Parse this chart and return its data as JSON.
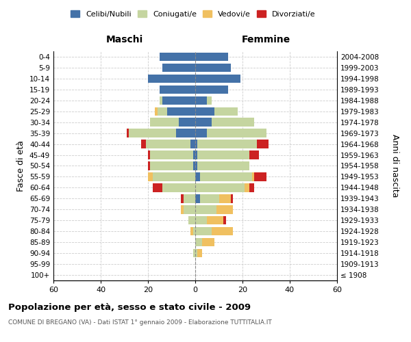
{
  "age_groups": [
    "100+",
    "95-99",
    "90-94",
    "85-89",
    "80-84",
    "75-79",
    "70-74",
    "65-69",
    "60-64",
    "55-59",
    "50-54",
    "45-49",
    "40-44",
    "35-39",
    "30-34",
    "25-29",
    "20-24",
    "15-19",
    "10-14",
    "5-9",
    "0-4"
  ],
  "birth_years": [
    "≤ 1908",
    "1909-1913",
    "1914-1918",
    "1919-1923",
    "1924-1928",
    "1929-1933",
    "1934-1938",
    "1939-1943",
    "1944-1948",
    "1949-1953",
    "1954-1958",
    "1959-1963",
    "1964-1968",
    "1969-1973",
    "1974-1978",
    "1979-1983",
    "1984-1988",
    "1989-1993",
    "1994-1998",
    "1999-2003",
    "2004-2008"
  ],
  "males": {
    "celibi": [
      0,
      0,
      0,
      0,
      0,
      0,
      0,
      0,
      0,
      0,
      1,
      1,
      2,
      8,
      7,
      12,
      14,
      15,
      20,
      14,
      15
    ],
    "coniugati": [
      0,
      0,
      1,
      0,
      1,
      3,
      5,
      5,
      14,
      18,
      18,
      18,
      19,
      20,
      12,
      4,
      1,
      0,
      0,
      0,
      0
    ],
    "vedovi": [
      0,
      0,
      0,
      0,
      1,
      0,
      1,
      0,
      0,
      2,
      0,
      0,
      0,
      0,
      0,
      1,
      0,
      0,
      0,
      0,
      0
    ],
    "divorziati": [
      0,
      0,
      0,
      0,
      0,
      0,
      0,
      1,
      4,
      0,
      1,
      1,
      2,
      1,
      0,
      0,
      0,
      0,
      0,
      0,
      0
    ]
  },
  "females": {
    "nubili": [
      0,
      0,
      0,
      0,
      0,
      0,
      0,
      2,
      0,
      2,
      1,
      1,
      1,
      5,
      7,
      8,
      5,
      14,
      19,
      15,
      14
    ],
    "coniugate": [
      0,
      0,
      1,
      3,
      7,
      5,
      9,
      8,
      21,
      22,
      22,
      22,
      25,
      25,
      18,
      10,
      2,
      0,
      0,
      0,
      0
    ],
    "vedove": [
      0,
      0,
      2,
      5,
      9,
      7,
      7,
      5,
      2,
      1,
      0,
      0,
      0,
      0,
      0,
      0,
      0,
      0,
      0,
      0,
      0
    ],
    "divorziate": [
      0,
      0,
      0,
      0,
      0,
      1,
      0,
      1,
      2,
      5,
      0,
      4,
      5,
      0,
      0,
      0,
      0,
      0,
      0,
      0,
      0
    ]
  },
  "colors": {
    "celibi": "#4472a8",
    "coniugati": "#c5d5a0",
    "vedovi": "#f0c060",
    "divorziati": "#cc2222"
  },
  "xlim": 60,
  "title": "Popolazione per età, sesso e stato civile - 2009",
  "subtitle": "COMUNE DI BREGANO (VA) - Dati ISTAT 1° gennaio 2009 - Elaborazione TUTTITALIA.IT",
  "ylabel_left": "Fasce di età",
  "ylabel_right": "Anni di nascita",
  "xlabel_left": "Maschi",
  "xlabel_right": "Femmine",
  "legend_labels": [
    "Celibi/Nubili",
    "Coniugati/e",
    "Vedovi/e",
    "Divorziati/e"
  ]
}
